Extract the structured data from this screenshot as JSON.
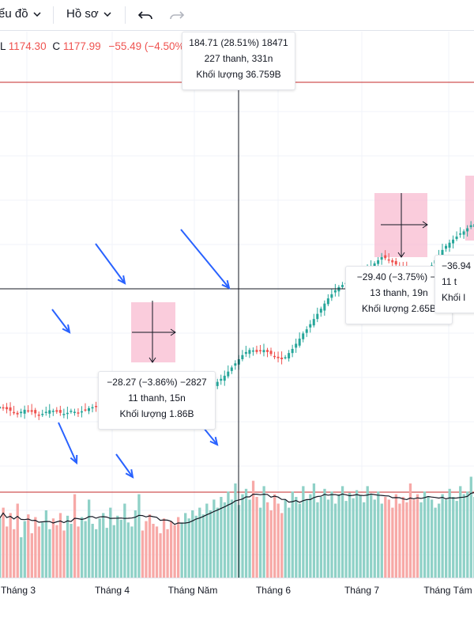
{
  "toolbar": {
    "chart_type_label": "ểu đồ",
    "profile_label": "Hồ sơ",
    "icons": [
      "chevron-down-icon",
      "undo-icon",
      "redo-icon"
    ]
  },
  "ohlc": {
    "low_key": "L",
    "low_value": "1174.30",
    "close_key": "C",
    "close_value": "1177.99",
    "change": "−55.49 (−4.50%)"
  },
  "colors": {
    "up": "#26a69a",
    "down": "#ef5350",
    "up_volume": "#8fd1c7",
    "down_volume": "#f7a9a7",
    "measure_fill": "#f8bbd0",
    "arrow": "#2962ff",
    "price_line": "#c62828"
  },
  "measurements": {
    "main": {
      "line1": "184.71 (28.51%) 18471",
      "line2": "227 thanh, 331n",
      "line3": "Khối lượng 36.759B"
    },
    "m1": {
      "line1": "−28.27 (−3.86%) −2827",
      "line2": "11 thanh, 15n",
      "line3": "Khối lượng 1.86B"
    },
    "m2": {
      "line1": "−29.40 (−3.75%) −2",
      "line2": "13 thanh, 19n",
      "line3": "Khối lượng 2.65B"
    },
    "m3": {
      "line1": "−36.94",
      "line2": "11 t",
      "line3": "Khối l"
    }
  },
  "chart_data": {
    "type": "candlestick",
    "x_ticks": [
      "Tháng 3",
      "Tháng 4",
      "Tháng Năm",
      "Tháng 6",
      "Tháng 7",
      "Tháng Tám"
    ],
    "price_range": [
      660,
      1320
    ],
    "price_series": [
      700,
      698,
      695,
      692,
      688,
      685,
      690,
      694,
      692,
      690,
      687,
      684,
      686,
      690,
      693,
      692,
      690,
      688,
      686,
      688,
      692,
      690,
      688,
      691,
      694,
      697,
      699,
      700,
      702,
      705,
      708,
      710,
      712,
      714,
      716,
      718,
      720,
      722,
      727,
      735,
      722,
      712,
      706,
      699,
      694,
      690,
      688,
      684,
      680,
      676,
      672,
      676,
      684,
      692,
      700,
      708,
      716,
      722,
      728,
      734,
      740,
      748,
      754,
      760,
      768,
      776,
      784,
      792,
      800,
      806,
      810,
      809,
      806,
      808,
      810,
      806,
      802,
      798,
      794,
      792,
      796,
      804,
      812,
      822,
      832,
      842,
      850,
      860,
      870,
      880,
      890,
      900,
      910,
      918,
      926,
      932,
      936,
      940,
      944,
      948,
      952,
      956,
      960,
      966,
      972,
      978,
      984,
      990,
      988,
      984,
      980,
      976,
      972,
      968,
      964,
      960,
      956,
      954,
      956,
      960,
      966,
      974,
      984,
      994,
      1004,
      1012,
      1018,
      1024,
      1030,
      1036,
      1040,
      1046,
      1052,
      1054,
      1020
    ],
    "volume_range": [
      0,
      100
    ],
    "volume_series": [
      44,
      52,
      38,
      48,
      36,
      55,
      30,
      42,
      47,
      33,
      45,
      38,
      41,
      50,
      36,
      44,
      39,
      48,
      35,
      46,
      40,
      62,
      38,
      45,
      42,
      58,
      40,
      36,
      44,
      48,
      37,
      52,
      39,
      46,
      43,
      55,
      41,
      38,
      50,
      62,
      35,
      42,
      47,
      40,
      38,
      33,
      44,
      36,
      42,
      39,
      45,
      41,
      48,
      44,
      50,
      46,
      52,
      47,
      55,
      50,
      58,
      52,
      60,
      56,
      64,
      58,
      70,
      54,
      62,
      66,
      58,
      72,
      60,
      52,
      68,
      56,
      50,
      62,
      55,
      48,
      58,
      52,
      64,
      60,
      55,
      68,
      58,
      62,
      70,
      56,
      60,
      66,
      58,
      64,
      55,
      62,
      68,
      57,
      63,
      59,
      65,
      61,
      56,
      68,
      62,
      58,
      64,
      55,
      60,
      58,
      52,
      62,
      55,
      60,
      56,
      70,
      58,
      62,
      56,
      64,
      60,
      58,
      52,
      55,
      62,
      58,
      66,
      60,
      57,
      68,
      62,
      64,
      75,
      60,
      58
    ],
    "moving_average_volume": "line",
    "crosshair": {
      "label": "184.71 (28.51%) 18471"
    }
  }
}
